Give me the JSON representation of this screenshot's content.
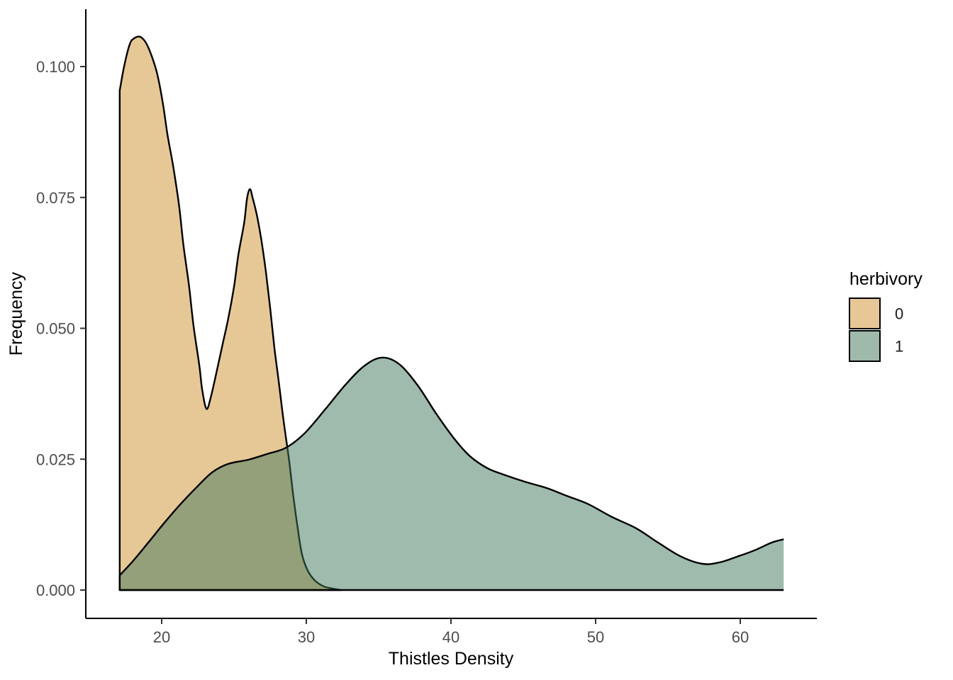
{
  "figure": {
    "background": "#ffffff",
    "axis_line_color": "#000000",
    "tick_color": "#333333",
    "tick_label_color": "#4d4d4d"
  },
  "chart_data": {
    "type": "area",
    "title": "",
    "xlabel": "Thistles Density",
    "ylabel": "Frequency",
    "grid": false,
    "xlim": [
      14.8,
      65.3
    ],
    "ylim": [
      0,
      0.111
    ],
    "x_ticks": {
      "values": [
        20,
        30,
        40,
        50,
        60
      ],
      "labels": [
        "20",
        "30",
        "40",
        "50",
        "60"
      ]
    },
    "y_ticks": {
      "values": [
        0,
        0.025,
        0.05,
        0.075,
        0.1
      ],
      "labels": [
        "0.000",
        "0.025",
        "0.050",
        "0.075",
        "0.100"
      ]
    },
    "legend": {
      "title": "herbivory",
      "position": "right"
    },
    "series": [
      {
        "name": "0",
        "legend_label": "0",
        "fill": "#CD912D",
        "fill_opacity": 0.5,
        "legend_fill": "#E7C795",
        "outline": "#000000",
        "close_right_edge": true,
        "points": [
          [
            17.1,
            0.0954
          ],
          [
            17.4,
            0.1
          ],
          [
            17.8,
            0.1043
          ],
          [
            18.1,
            0.1054
          ],
          [
            18.5,
            0.1057
          ],
          [
            18.9,
            0.1046
          ],
          [
            19.3,
            0.1021
          ],
          [
            19.7,
            0.0985
          ],
          [
            20.1,
            0.0927
          ],
          [
            20.4,
            0.087
          ],
          [
            20.8,
            0.0809
          ],
          [
            21.2,
            0.0735
          ],
          [
            21.5,
            0.066
          ],
          [
            21.9,
            0.0579
          ],
          [
            22.2,
            0.0505
          ],
          [
            22.6,
            0.043
          ],
          [
            22.8,
            0.0383
          ],
          [
            23.1,
            0.0346
          ],
          [
            23.4,
            0.0369
          ],
          [
            23.8,
            0.0417
          ],
          [
            24.2,
            0.0468
          ],
          [
            24.6,
            0.0518
          ],
          [
            25.0,
            0.0579
          ],
          [
            25.3,
            0.064
          ],
          [
            25.7,
            0.0701
          ],
          [
            25.9,
            0.0748
          ],
          [
            26.1,
            0.0766
          ],
          [
            26.3,
            0.0748
          ],
          [
            26.6,
            0.0714
          ],
          [
            26.9,
            0.0667
          ],
          [
            27.2,
            0.0609
          ],
          [
            27.5,
            0.0539
          ],
          [
            27.8,
            0.0461
          ],
          [
            28.1,
            0.0397
          ],
          [
            28.4,
            0.0329
          ],
          [
            28.8,
            0.025
          ],
          [
            29.1,
            0.018
          ],
          [
            29.4,
            0.0119
          ],
          [
            29.7,
            0.0068
          ],
          [
            30.1,
            0.0037
          ],
          [
            30.6,
            0.0018
          ],
          [
            31.2,
            0.0007
          ],
          [
            31.8,
            0.0003
          ],
          [
            32.4,
            0.0
          ]
        ]
      },
      {
        "name": "1",
        "legend_label": "1",
        "fill": "#40785C",
        "fill_opacity": 0.5,
        "legend_fill": "#9FB9AB",
        "outline": "#000000",
        "close_right_edge": false,
        "points": [
          [
            17.1,
            0.0028
          ],
          [
            18.1,
            0.0058
          ],
          [
            19.2,
            0.0095
          ],
          [
            20.2,
            0.0129
          ],
          [
            21.3,
            0.0164
          ],
          [
            22.4,
            0.0196
          ],
          [
            23.5,
            0.0225
          ],
          [
            24.6,
            0.0241
          ],
          [
            26.0,
            0.0249
          ],
          [
            27.3,
            0.026
          ],
          [
            28.6,
            0.0272
          ],
          [
            29.9,
            0.03
          ],
          [
            31.3,
            0.0345
          ],
          [
            32.7,
            0.0392
          ],
          [
            34.0,
            0.0428
          ],
          [
            35.2,
            0.0444
          ],
          [
            36.4,
            0.0432
          ],
          [
            37.7,
            0.0391
          ],
          [
            39.0,
            0.0336
          ],
          [
            40.2,
            0.029
          ],
          [
            41.3,
            0.0256
          ],
          [
            42.5,
            0.0233
          ],
          [
            43.6,
            0.0221
          ],
          [
            45.1,
            0.0207
          ],
          [
            46.6,
            0.0195
          ],
          [
            48.0,
            0.018
          ],
          [
            49.5,
            0.0164
          ],
          [
            51.1,
            0.014
          ],
          [
            52.8,
            0.0118
          ],
          [
            54.3,
            0.0091
          ],
          [
            55.9,
            0.0064
          ],
          [
            57.4,
            0.005
          ],
          [
            58.6,
            0.0053
          ],
          [
            59.8,
            0.0064
          ],
          [
            61.0,
            0.0076
          ],
          [
            62.2,
            0.0091
          ],
          [
            63.0,
            0.0097
          ]
        ]
      }
    ]
  }
}
